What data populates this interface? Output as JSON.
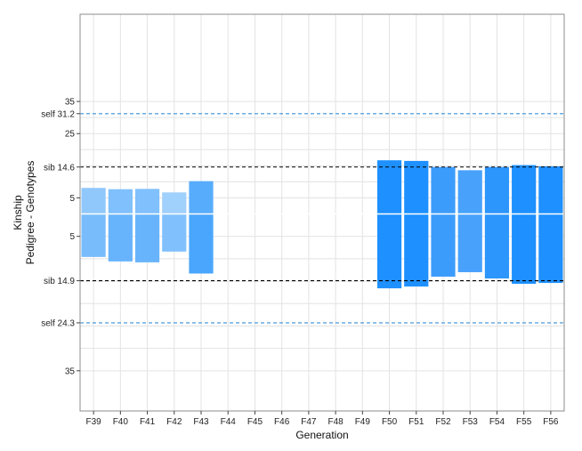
{
  "chart_data": {
    "type": "bar",
    "xlabel": "Generation",
    "ylabel_lines": [
      "Kinship",
      "Pedigree - Genotypes"
    ],
    "categories": [
      "F39",
      "F40",
      "F41",
      "F42",
      "F43",
      "F44",
      "F45",
      "F46",
      "F47",
      "F48",
      "F49",
      "F50",
      "F51",
      "F52",
      "F53",
      "F54",
      "F55",
      "F56"
    ],
    "y_note": "mirrored axis: values above the center line = pedigree kinship, below = genotype kinship",
    "ylim_upper": [
      0,
      40
    ],
    "ylim_lower": [
      0,
      40
    ],
    "y_ticks_upper": [
      {
        "value": 35,
        "label": "35"
      },
      {
        "value": 25,
        "label": "25"
      },
      {
        "value": 5,
        "label": "5"
      }
    ],
    "y_ticks_lower": [
      {
        "value": 5,
        "label": "5"
      },
      {
        "value": 35,
        "label": "35"
      }
    ],
    "reference_lines": [
      {
        "side": "upper",
        "value": 31.2,
        "label": "self 31.2",
        "style": "dashed",
        "color": "#3a8fd6"
      },
      {
        "side": "upper",
        "value": 14.6,
        "label": "sib 14.6",
        "style": "dashed",
        "color": "#000000"
      },
      {
        "side": "lower",
        "value": 14.9,
        "label": "sib 14.9",
        "style": "dashed",
        "color": "#000000"
      },
      {
        "side": "lower",
        "value": 24.3,
        "label": "self 24.3",
        "style": "dashed",
        "color": "#3a8fd6"
      }
    ],
    "series": [
      {
        "values_upper": [
          8.1,
          7.7,
          7.8,
          6.7,
          10.2,
          null,
          null,
          null,
          null,
          null,
          null,
          16.7,
          16.5,
          14.6,
          13.6,
          14.6,
          15.2,
          14.8
        ],
        "values_lower": [
          9.6,
          10.6,
          10.8,
          8.4,
          13.3,
          null,
          null,
          null,
          null,
          null,
          null,
          16.6,
          16.2,
          14.0,
          13.0,
          14.4,
          15.6,
          15.4
        ],
        "colors": [
          "#90c8fc",
          "#80c0fc",
          "#80c0fc",
          "#a0d0fc",
          "#58acfc",
          null,
          null,
          null,
          null,
          null,
          null,
          "#1e90ff",
          "#1e90ff",
          "#3c9cfc",
          "#48a2fc",
          "#2c96fc",
          "#1e90ff",
          "#1e90ff"
        ],
        "lower_colors": [
          "#78bcfc",
          "#68b4fc",
          "#68b4fc",
          "#80c0fc",
          "#4aa6fc",
          null,
          null,
          null,
          null,
          null,
          null,
          "#1e90ff",
          "#1e90ff",
          "#3c9cfc",
          "#48a2fc",
          "#2c96fc",
          "#1e90ff",
          "#1e90ff"
        ]
      }
    ],
    "grid": true,
    "legend": "none"
  }
}
